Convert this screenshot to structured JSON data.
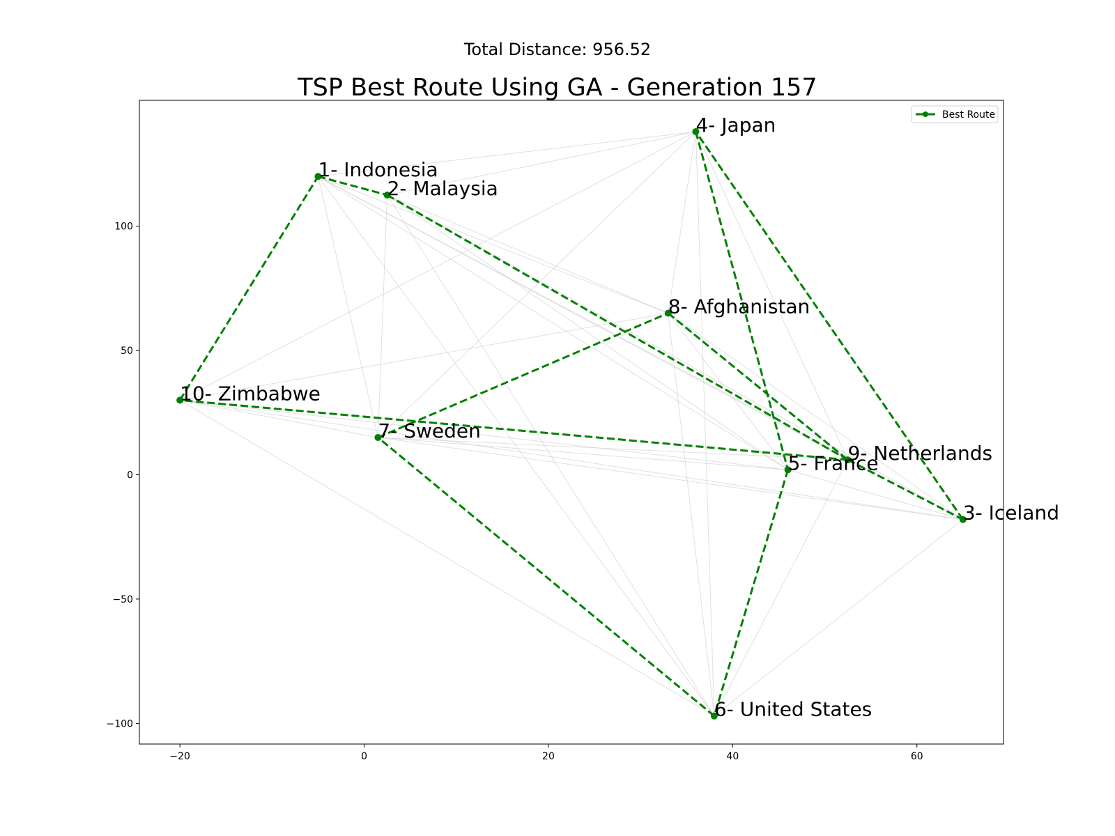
{
  "suptitle": "Total Distance: 956.52",
  "chart_data": {
    "type": "line",
    "title": "TSP Best Route Using GA - Generation 157",
    "xlabel": "",
    "ylabel": "",
    "xlim": [
      -24.4,
      69.4
    ],
    "ylim": [
      -108.3,
      150.6
    ],
    "x_ticks": [
      -20,
      0,
      20,
      40,
      60
    ],
    "y_ticks": [
      -100,
      -50,
      0,
      50,
      100
    ],
    "x_tick_labels": [
      "−20",
      "0",
      "20",
      "40",
      "60"
    ],
    "y_tick_labels": [
      "−100",
      "−50",
      "0",
      "50",
      "100"
    ],
    "grid": false,
    "legend": {
      "position": "top-right",
      "entries": [
        "Best Route"
      ]
    },
    "cities": [
      {
        "id": 1,
        "label": "1- Indonesia",
        "x": -5.0,
        "y": 120.0
      },
      {
        "id": 2,
        "label": "2- Malaysia",
        "x": 2.5,
        "y": 112.5
      },
      {
        "id": 3,
        "label": "3- Iceland",
        "x": 65.0,
        "y": -18.0
      },
      {
        "id": 4,
        "label": "4- Japan",
        "x": 36.0,
        "y": 138.0
      },
      {
        "id": 5,
        "label": "5- France",
        "x": 46.0,
        "y": 2.0
      },
      {
        "id": 6,
        "label": "6- United States",
        "x": 38.0,
        "y": -97.0
      },
      {
        "id": 7,
        "label": "7- Sweden",
        "x": 1.5,
        "y": 15.0
      },
      {
        "id": 8,
        "label": "8- Afghanistan",
        "x": 33.0,
        "y": 65.0
      },
      {
        "id": 9,
        "label": "9- Netherlands",
        "x": 52.5,
        "y": 6.0
      },
      {
        "id": 10,
        "label": "10- Zimbabwe",
        "x": -20.0,
        "y": 30.0
      }
    ],
    "series": [
      {
        "name": "Best Route",
        "route": [
          1,
          2,
          9,
          3,
          4,
          5,
          6,
          7,
          8,
          9,
          10,
          1
        ]
      }
    ],
    "background_edges": [
      [
        1,
        4
      ],
      [
        2,
        4
      ],
      [
        1,
        8
      ],
      [
        2,
        8
      ],
      [
        1,
        9
      ],
      [
        2,
        9
      ],
      [
        1,
        5
      ],
      [
        2,
        5
      ],
      [
        1,
        3
      ],
      [
        2,
        3
      ],
      [
        1,
        7
      ],
      [
        2,
        7
      ],
      [
        1,
        6
      ],
      [
        2,
        6
      ],
      [
        4,
        10
      ],
      [
        4,
        8
      ],
      [
        4,
        6
      ],
      [
        4,
        5
      ],
      [
        4,
        9
      ],
      [
        4,
        3
      ],
      [
        4,
        7
      ],
      [
        10,
        8
      ],
      [
        10,
        7
      ],
      [
        10,
        5
      ],
      [
        10,
        9
      ],
      [
        10,
        3
      ],
      [
        10,
        6
      ],
      [
        7,
        5
      ],
      [
        7,
        9
      ],
      [
        7,
        3
      ],
      [
        8,
        6
      ],
      [
        8,
        5
      ],
      [
        8,
        9
      ],
      [
        8,
        3
      ],
      [
        6,
        9
      ],
      [
        6,
        3
      ],
      [
        5,
        3
      ]
    ],
    "colors": {
      "route": "#008000",
      "edges": "#cccccc",
      "axes": "#000000"
    }
  }
}
